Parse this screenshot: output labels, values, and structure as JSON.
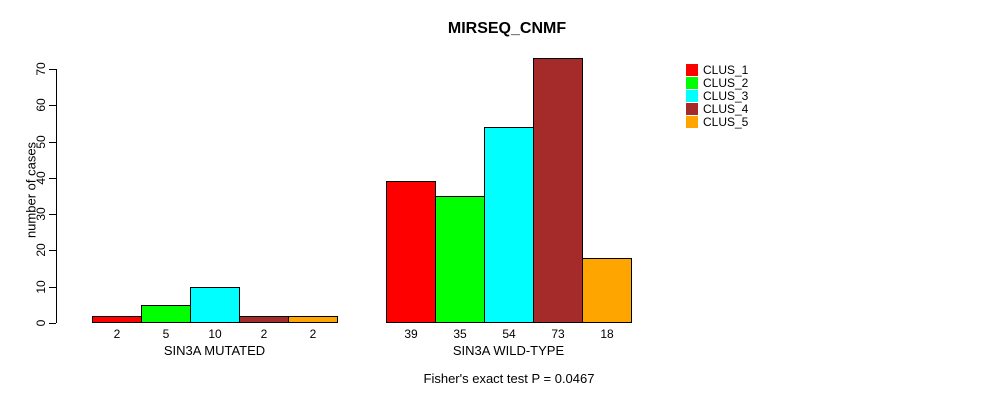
{
  "chart_data": {
    "type": "bar",
    "title": "MIRSEQ_CNMF",
    "ylabel": "number of cases",
    "xlabel": "",
    "ylim": [
      0,
      70
    ],
    "yticks": [
      0,
      10,
      20,
      30,
      40,
      50,
      60,
      70
    ],
    "grid": false,
    "legend_position": "right",
    "categories": [
      "SIN3A MUTATED",
      "SIN3A WILD-TYPE"
    ],
    "series": [
      {
        "name": "CLUS_1",
        "color": "#FF0000",
        "values": [
          2,
          39
        ]
      },
      {
        "name": "CLUS_2",
        "color": "#00FF00",
        "values": [
          5,
          35
        ]
      },
      {
        "name": "CLUS_3",
        "color": "#00FFFF",
        "values": [
          10,
          54
        ]
      },
      {
        "name": "CLUS_4",
        "color": "#A52A2A",
        "values": [
          2,
          73
        ]
      },
      {
        "name": "CLUS_5",
        "color": "#FFA500",
        "values": [
          2,
          18
        ]
      }
    ],
    "bar_value_labels": {
      "SIN3A MUTATED": [
        "2",
        "5",
        "10",
        "2",
        "2"
      ],
      "SIN3A WILD-TYPE": [
        "39",
        "35",
        "54",
        "73",
        "18"
      ]
    },
    "footnote": "Fisher's exact test P = 0.0467"
  }
}
